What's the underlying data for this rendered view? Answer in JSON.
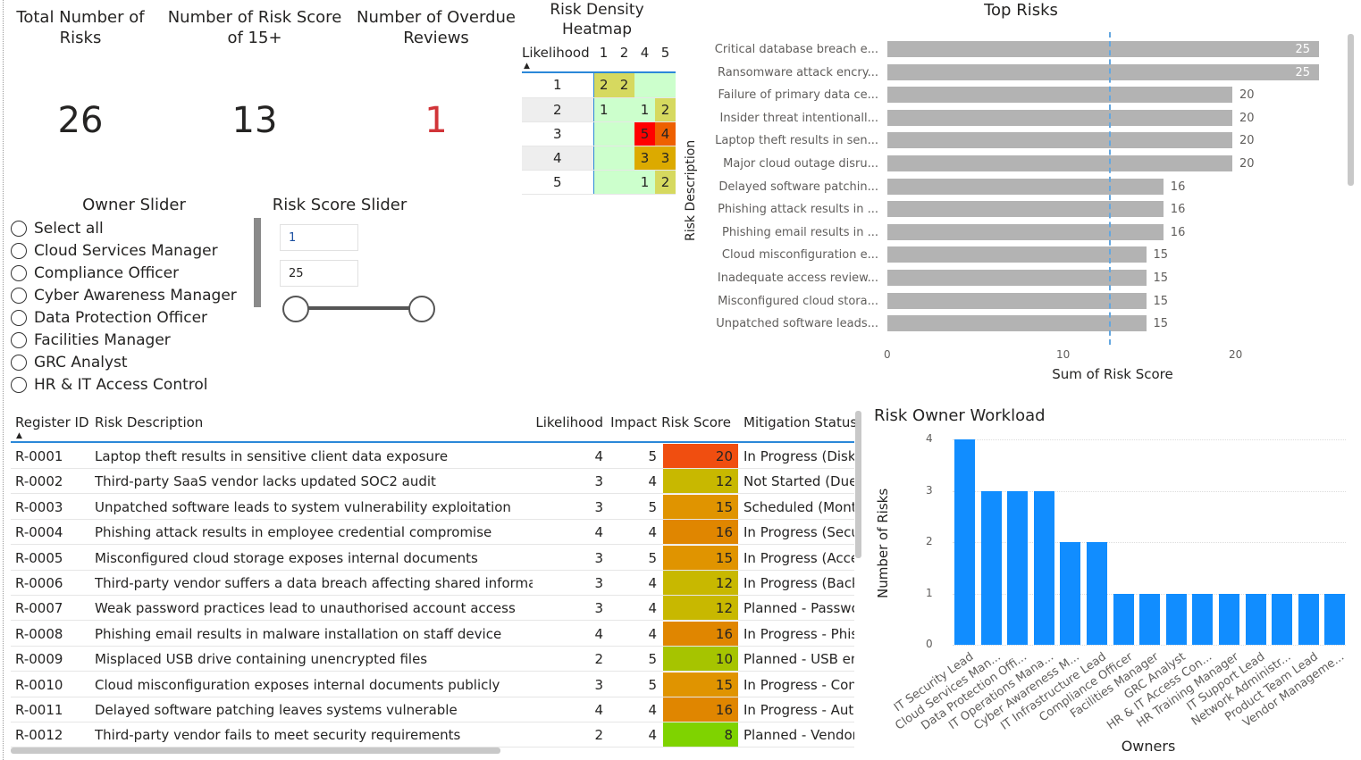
{
  "cards": [
    {
      "title": "Total Number of Risks",
      "value": "26",
      "color": "#252423"
    },
    {
      "title": "Number of Risk Score of 15+",
      "value": "13",
      "color": "#252423"
    },
    {
      "title": "Number of Overdue Reviews",
      "value": "1",
      "color": "#d13438"
    }
  ],
  "owner_slider": {
    "title": "Owner Slider",
    "items": [
      "Select all",
      "Cloud Services Manager",
      "Compliance Officer",
      "Cyber Awareness Manager",
      "Data Protection Officer",
      "Facilities Manager",
      "GRC Analyst",
      "HR & IT Access Control"
    ]
  },
  "risk_slider": {
    "title": "Risk Score Slider",
    "min": "1",
    "max": "25"
  },
  "heatmap": {
    "title": "Risk Density Heatmap",
    "row_header": "Likelihood",
    "columns": [
      "1",
      "2",
      "4",
      "5"
    ],
    "rows": [
      {
        "label": "1",
        "cells": [
          "2",
          "2",
          "",
          ""
        ]
      },
      {
        "label": "2",
        "cells": [
          "1",
          "",
          "1",
          "2"
        ]
      },
      {
        "label": "3",
        "cells": [
          "",
          "",
          "5",
          "4"
        ]
      },
      {
        "label": "4",
        "cells": [
          "",
          "",
          "3",
          "3"
        ]
      },
      {
        "label": "5",
        "cells": [
          "",
          "",
          "1",
          "2"
        ]
      }
    ],
    "colors": {
      "": "#ccffcc",
      "1": "#ccffcc",
      "2": "#d6d95f",
      "3": "#dcaa00",
      "4": "#ee6000",
      "5": "#ff0000"
    }
  },
  "chart_data": [
    {
      "type": "bar",
      "orientation": "horizontal",
      "title": "Top Risks",
      "ylabel": "Risk Description",
      "xlabel": "Sum of Risk Score",
      "xlim": [
        0,
        25
      ],
      "xticks": [
        "0",
        "10",
        "20"
      ],
      "reference_line": 12.85,
      "color": "#b3b3b3",
      "categories": [
        "Critical database breach e...",
        "Ransomware attack encry...",
        "Failure of primary data ce...",
        "Insider threat intentionall...",
        "Laptop theft results in sen...",
        "Major cloud outage disru...",
        "Delayed software patchin...",
        "Phishing attack results in ...",
        "Phishing email results in ...",
        "Cloud misconfiguration e...",
        "Inadequate access review...",
        "Misconfigured cloud stora...",
        "Unpatched software leads..."
      ],
      "values": [
        25,
        25,
        20,
        20,
        20,
        20,
        16,
        16,
        16,
        15,
        15,
        15,
        15
      ]
    },
    {
      "type": "bar",
      "title": "Risk Owner Workload",
      "xlabel": "Owners",
      "ylabel": "Number of Risks",
      "ylim": [
        0,
        4
      ],
      "yticks": [
        "0",
        "1",
        "2",
        "3",
        "4"
      ],
      "color": "#118dff",
      "categories": [
        "IT Security Lead",
        "Cloud Services Man...",
        "Data Protection Offi...",
        "IT Operations Mana...",
        "Cyber Awareness M...",
        "IT Infrastructure Lead",
        "Compliance Officer",
        "Facilities Manager",
        "GRC Analyst",
        "HR & IT Access Con...",
        "HR Training Manager",
        "IT Support Lead",
        "Network Administr...",
        "Product Team Lead",
        "Vendor Manageme..."
      ],
      "values": [
        4,
        3,
        3,
        3,
        2,
        2,
        1,
        1,
        1,
        1,
        1,
        1,
        1,
        1,
        1
      ]
    }
  ],
  "table": {
    "headers": [
      "Register ID",
      "Risk Description",
      "Likelihood",
      "Impact",
      "Risk Score",
      "Mitigation Status"
    ],
    "rows": [
      [
        "R-0001",
        "Laptop theft results in sensitive client data exposure",
        "4",
        "5",
        "20",
        "In Progress (Disk encryption"
      ],
      [
        "R-0002",
        "Third-party SaaS vendor lacks updated SOC2 audit",
        "3",
        "4",
        "12",
        "Not Started (Due diligence"
      ],
      [
        "R-0003",
        "Unpatched software leads to system vulnerability exploitation",
        "3",
        "5",
        "15",
        "Scheduled (Monthly"
      ],
      [
        "R-0004",
        "Phishing attack results in employee credential compromise",
        "4",
        "4",
        "16",
        "In Progress (Security"
      ],
      [
        "R-0005",
        "Misconfigured cloud storage exposes internal documents",
        "3",
        "5",
        "15",
        "In Progress (Access"
      ],
      [
        "R-0006",
        "Third-party vendor suffers a data breach affecting shared information",
        "3",
        "4",
        "12",
        "In Progress (Backup"
      ],
      [
        "R-0007",
        "Weak password practices lead to unauthorised account access",
        "3",
        "4",
        "12",
        "Planned - Password"
      ],
      [
        "R-0008",
        "Phishing email results in malware installation on staff device",
        "4",
        "4",
        "16",
        "In Progress - Phishing"
      ],
      [
        "R-0009",
        "Misplaced USB drive containing unencrypted files",
        "2",
        "5",
        "10",
        "Planned - USB encryption"
      ],
      [
        "R-0010",
        "Cloud misconfiguration exposes internal documents publicly",
        "3",
        "5",
        "15",
        "In Progress - Config"
      ],
      [
        "R-0011",
        "Delayed software patching leaves systems vulnerable",
        "4",
        "4",
        "16",
        "In Progress - Auto"
      ],
      [
        "R-0012",
        "Third-party vendor fails to meet security requirements",
        "2",
        "4",
        "8",
        "Planned - Vendor"
      ]
    ],
    "score_colors": {
      "8": "#7fd300",
      "10": "#a6c400",
      "12": "#c8b800",
      "15": "#e09400",
      "16": "#e08600",
      "20": "#f04e10"
    }
  }
}
